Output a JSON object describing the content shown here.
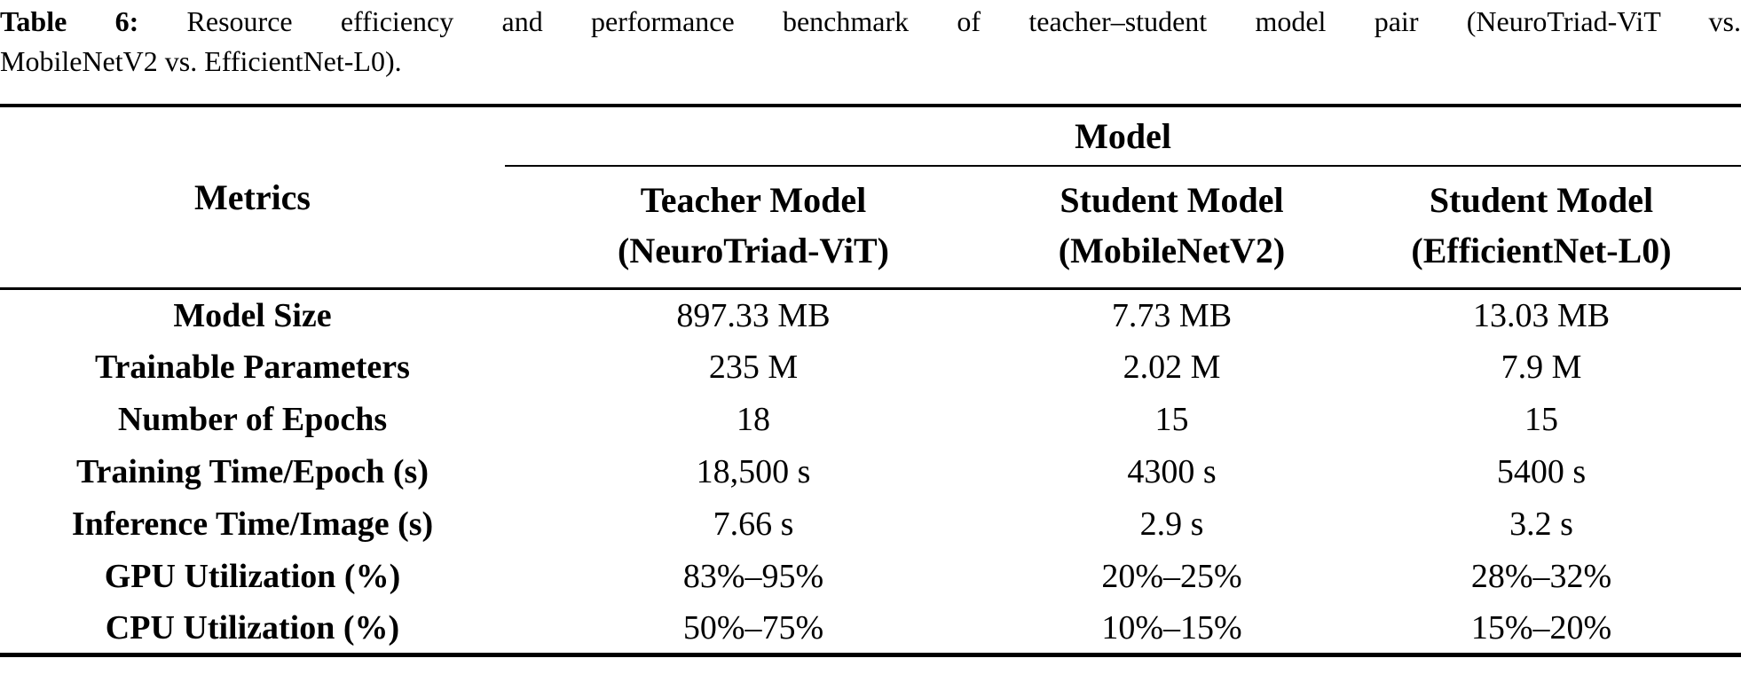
{
  "caption": {
    "label": "Table 6:",
    "line1_rest": "Resource efficiency and performance benchmark of teacher–student model pair (NeuroTriad-ViT vs.",
    "line2": "MobileNetV2 vs. EfficientNet-L0)."
  },
  "table": {
    "metrics_header": "Metrics",
    "group_header": "Model",
    "columns": [
      {
        "line1": "Teacher Model",
        "line2": "(NeuroTriad-ViT)"
      },
      {
        "line1": "Student Model",
        "line2": "(MobileNetV2)"
      },
      {
        "line1": "Student Model",
        "line2": "(EfficientNet-L0)"
      }
    ],
    "rows": [
      {
        "metric": "Model Size",
        "values": [
          "897.33 MB",
          "7.73 MB",
          "13.03 MB"
        ]
      },
      {
        "metric": "Trainable Parameters",
        "values": [
          "235 M",
          "2.02 M",
          "7.9 M"
        ]
      },
      {
        "metric": "Number of Epochs",
        "values": [
          "18",
          "15",
          "15"
        ]
      },
      {
        "metric": "Training Time/Epoch (s)",
        "values": [
          "18,500 s",
          "4300 s",
          "5400 s"
        ]
      },
      {
        "metric": "Inference Time/Image (s)",
        "values": [
          "7.66 s",
          "2.9 s",
          "3.2 s"
        ]
      },
      {
        "metric": "GPU Utilization (%)",
        "values": [
          "83%–95%",
          "20%–25%",
          "28%–32%"
        ]
      },
      {
        "metric": "CPU Utilization (%)",
        "values": [
          "50%–75%",
          "10%–15%",
          "15%–20%"
        ]
      }
    ]
  },
  "colors": {
    "text": "#000000",
    "background": "#ffffff",
    "rule": "#000000"
  }
}
